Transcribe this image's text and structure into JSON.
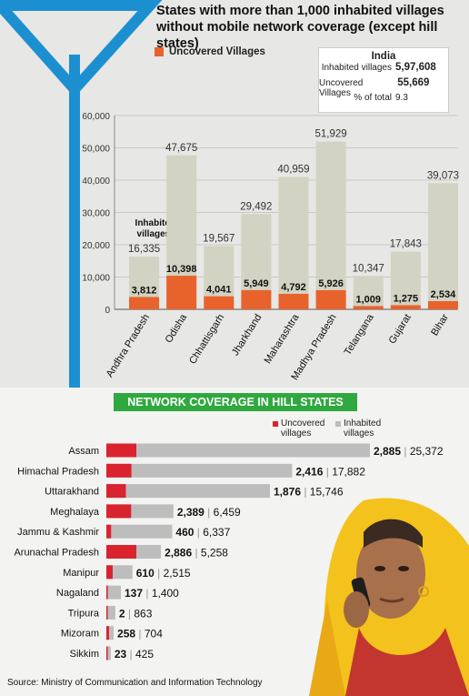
{
  "title": "States with more than 1,000 inhabited villages without mobile network coverage (except hill states)",
  "legend_uncovered": "Uncovered Villages",
  "india_box": {
    "heading": "India",
    "rows": [
      {
        "label": "Inhabited villages",
        "value": "5,97,608"
      },
      {
        "label": "Uncovered Villages",
        "value": "55,669"
      },
      {
        "label": "% of total",
        "value": "9.3"
      }
    ]
  },
  "inhabited_annotation": "Inhabited villages",
  "hill_title": "NETWORK COVERAGE IN HILL STATES",
  "hill_legend": {
    "uncovered": "Uncovered villages",
    "inhabited": "Inhabited villages"
  },
  "source": "Source: Ministry of Communication and Information Technology",
  "colors": {
    "inhabited_bar": "#d2d3c2",
    "uncovered_bar": "#e8622c",
    "hill_uncovered": "#d9232e",
    "hill_inhabited": "#bdbdbd",
    "banner": "#2fa83f",
    "antenna": "#1c8fd1"
  },
  "chart_data": [
    {
      "type": "bar",
      "title": "States with more than 1,000 inhabited villages without mobile network coverage (except hill states)",
      "categories": [
        "Andhra Pradesh",
        "Odisha",
        "Chhattisgarh",
        "Jharkhand",
        "Maharashtra",
        "Madhya Pradesh",
        "Telangana",
        "Gujarat",
        "Bihar"
      ],
      "series": [
        {
          "name": "Inhabited villages",
          "values": [
            16335,
            47675,
            19567,
            29492,
            40959,
            51929,
            10347,
            17843,
            39073
          ]
        },
        {
          "name": "Uncovered Villages",
          "values": [
            3812,
            10398,
            4041,
            5949,
            4792,
            5926,
            1009,
            1275,
            2534
          ]
        }
      ],
      "ylim": [
        0,
        60000
      ],
      "yticks": [
        "0",
        "10,000",
        "20,000",
        "30,000",
        "40,000",
        "50,000",
        "60,000"
      ],
      "grid": true
    },
    {
      "type": "bar",
      "orientation": "horizontal",
      "title": "NETWORK COVERAGE IN HILL STATES",
      "categories": [
        "Assam",
        "Himachal Pradesh",
        "Uttarakhand",
        "Meghalaya",
        "Jammu & Kashmir",
        "Arunachal Pradesh",
        "Manipur",
        "Nagaland",
        "Tripura",
        "Mizoram",
        "Sikkim"
      ],
      "series": [
        {
          "name": "Uncovered villages",
          "values": [
            2885,
            2416,
            1876,
            2389,
            460,
            2886,
            610,
            137,
            2,
            258,
            23
          ]
        },
        {
          "name": "Inhabited villages",
          "values": [
            25372,
            17882,
            15746,
            6459,
            6337,
            5258,
            2515,
            1400,
            863,
            704,
            425
          ]
        }
      ],
      "value_labels": [
        [
          "2,885",
          "25,372"
        ],
        [
          "2,416",
          "17,882"
        ],
        [
          "1,876",
          "15,746"
        ],
        [
          "2,389",
          "6,459"
        ],
        [
          "460",
          "6,337"
        ],
        [
          "2,886",
          "5,258"
        ],
        [
          "610",
          "2,515"
        ],
        [
          "137",
          "1,400"
        ],
        [
          "2",
          "863"
        ],
        [
          "258",
          "704"
        ],
        [
          "23",
          "425"
        ]
      ],
      "legend": "top-right"
    }
  ]
}
